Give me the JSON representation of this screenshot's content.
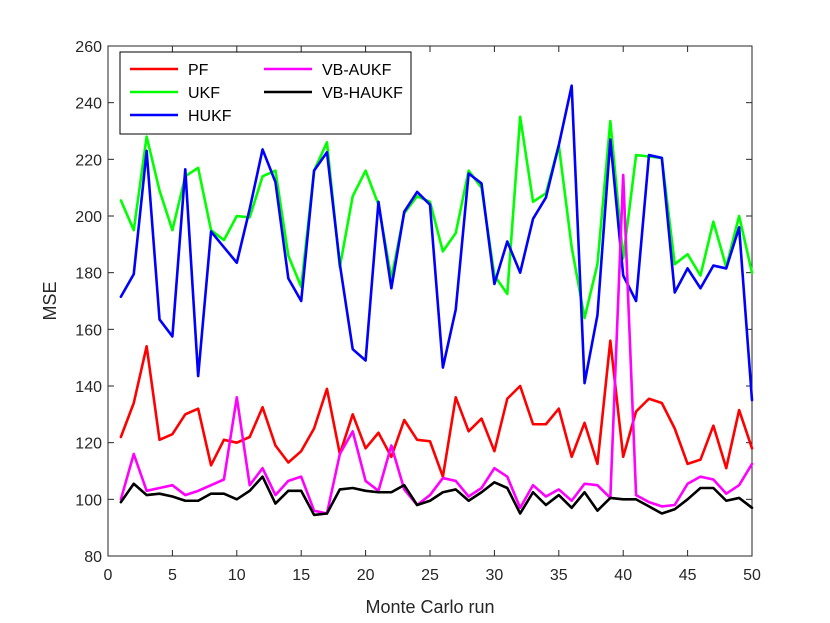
{
  "chart_data": {
    "type": "line",
    "xlabel": "Monte Carlo run",
    "ylabel": "MSE",
    "xlim": [
      0,
      50
    ],
    "ylim": [
      80,
      260
    ],
    "xticks": [
      0,
      5,
      10,
      15,
      20,
      25,
      30,
      35,
      40,
      45,
      50
    ],
    "yticks": [
      80,
      100,
      120,
      140,
      160,
      180,
      200,
      220,
      240,
      260
    ],
    "grid": false,
    "legend_position": "top-left",
    "x": [
      1,
      2,
      3,
      4,
      5,
      6,
      7,
      8,
      9,
      10,
      11,
      12,
      13,
      14,
      15,
      16,
      17,
      18,
      19,
      20,
      21,
      22,
      23,
      24,
      25,
      26,
      27,
      28,
      29,
      30,
      31,
      32,
      33,
      34,
      35,
      36,
      37,
      38,
      39,
      40,
      41,
      42,
      43,
      44,
      45,
      46,
      47,
      48,
      49,
      50
    ],
    "series": [
      {
        "name": "PF",
        "color": "#ff0000",
        "values": [
          122,
          134,
          154,
          121,
          123,
          130,
          132,
          112,
          121,
          120,
          122,
          132.5,
          119,
          113,
          117,
          125,
          139,
          116,
          130,
          118,
          123.5,
          115,
          128,
          121,
          120.5,
          108,
          136,
          124,
          128.5,
          117,
          135.5,
          140,
          126.5,
          126.5,
          132,
          115,
          127,
          112.5,
          156,
          115,
          131,
          135.5,
          134,
          125,
          112.5,
          114,
          126,
          111,
          131.5,
          118
        ]
      },
      {
        "name": "UKF",
        "color": "#00ff00",
        "values": [
          205.5,
          195,
          228,
          209,
          195,
          214,
          217,
          195,
          191.5,
          200,
          199.5,
          214,
          216,
          186,
          175,
          216,
          226,
          182,
          207,
          216,
          204,
          178,
          201,
          207,
          205,
          187.5,
          194,
          216,
          210,
          179,
          172.5,
          235,
          205,
          208,
          225,
          189,
          164,
          183,
          233.5,
          185,
          221.5,
          221,
          220.5,
          183,
          186.5,
          179,
          198,
          182,
          200,
          180
        ]
      },
      {
        "name": "HUKF",
        "color": "#0000ff",
        "values": [
          171.5,
          179.5,
          223,
          163.5,
          157.5,
          216.5,
          143.5,
          194.5,
          189,
          183.5,
          202.5,
          223.5,
          212,
          178,
          170,
          216,
          222.5,
          183,
          153,
          149,
          205,
          174.5,
          201.5,
          208.5,
          204,
          146.5,
          167,
          215,
          211.5,
          176,
          191,
          180,
          199,
          206.5,
          225,
          246,
          141,
          165,
          227,
          179,
          170,
          221.5,
          220.5,
          173,
          181.5,
          174.5,
          182.5,
          181.5,
          196,
          135
        ]
      },
      {
        "name": "VB-AUKF",
        "color": "#ff00ff",
        "values": [
          100,
          116,
          103,
          104,
          105,
          101.5,
          103,
          105,
          107,
          136,
          105,
          111,
          101.5,
          106.5,
          108,
          96,
          95,
          116,
          124,
          106.5,
          103,
          119,
          103.5,
          98,
          101.5,
          107.5,
          106.5,
          101,
          104,
          111,
          108,
          97,
          105,
          101,
          103.5,
          99.5,
          105.5,
          105,
          100.5,
          214.5,
          101.5,
          99,
          97.5,
          98,
          105.5,
          108,
          107,
          102,
          105,
          112.5
        ]
      },
      {
        "name": "VB-HAUKF",
        "color": "#000000",
        "values": [
          99,
          105.5,
          101.5,
          102,
          101,
          99.5,
          99.5,
          102,
          102,
          100,
          103,
          108,
          98.5,
          103,
          103,
          94.5,
          95,
          103.5,
          104,
          103,
          102.5,
          102.5,
          105,
          98,
          99.5,
          102.5,
          103.5,
          99.5,
          102.5,
          106,
          104,
          95,
          102.5,
          98,
          101.5,
          97,
          102.5,
          96,
          100.5,
          100,
          100,
          97.5,
          95,
          96.5,
          100,
          104,
          104,
          99.5,
          100.5,
          97
        ]
      }
    ]
  }
}
